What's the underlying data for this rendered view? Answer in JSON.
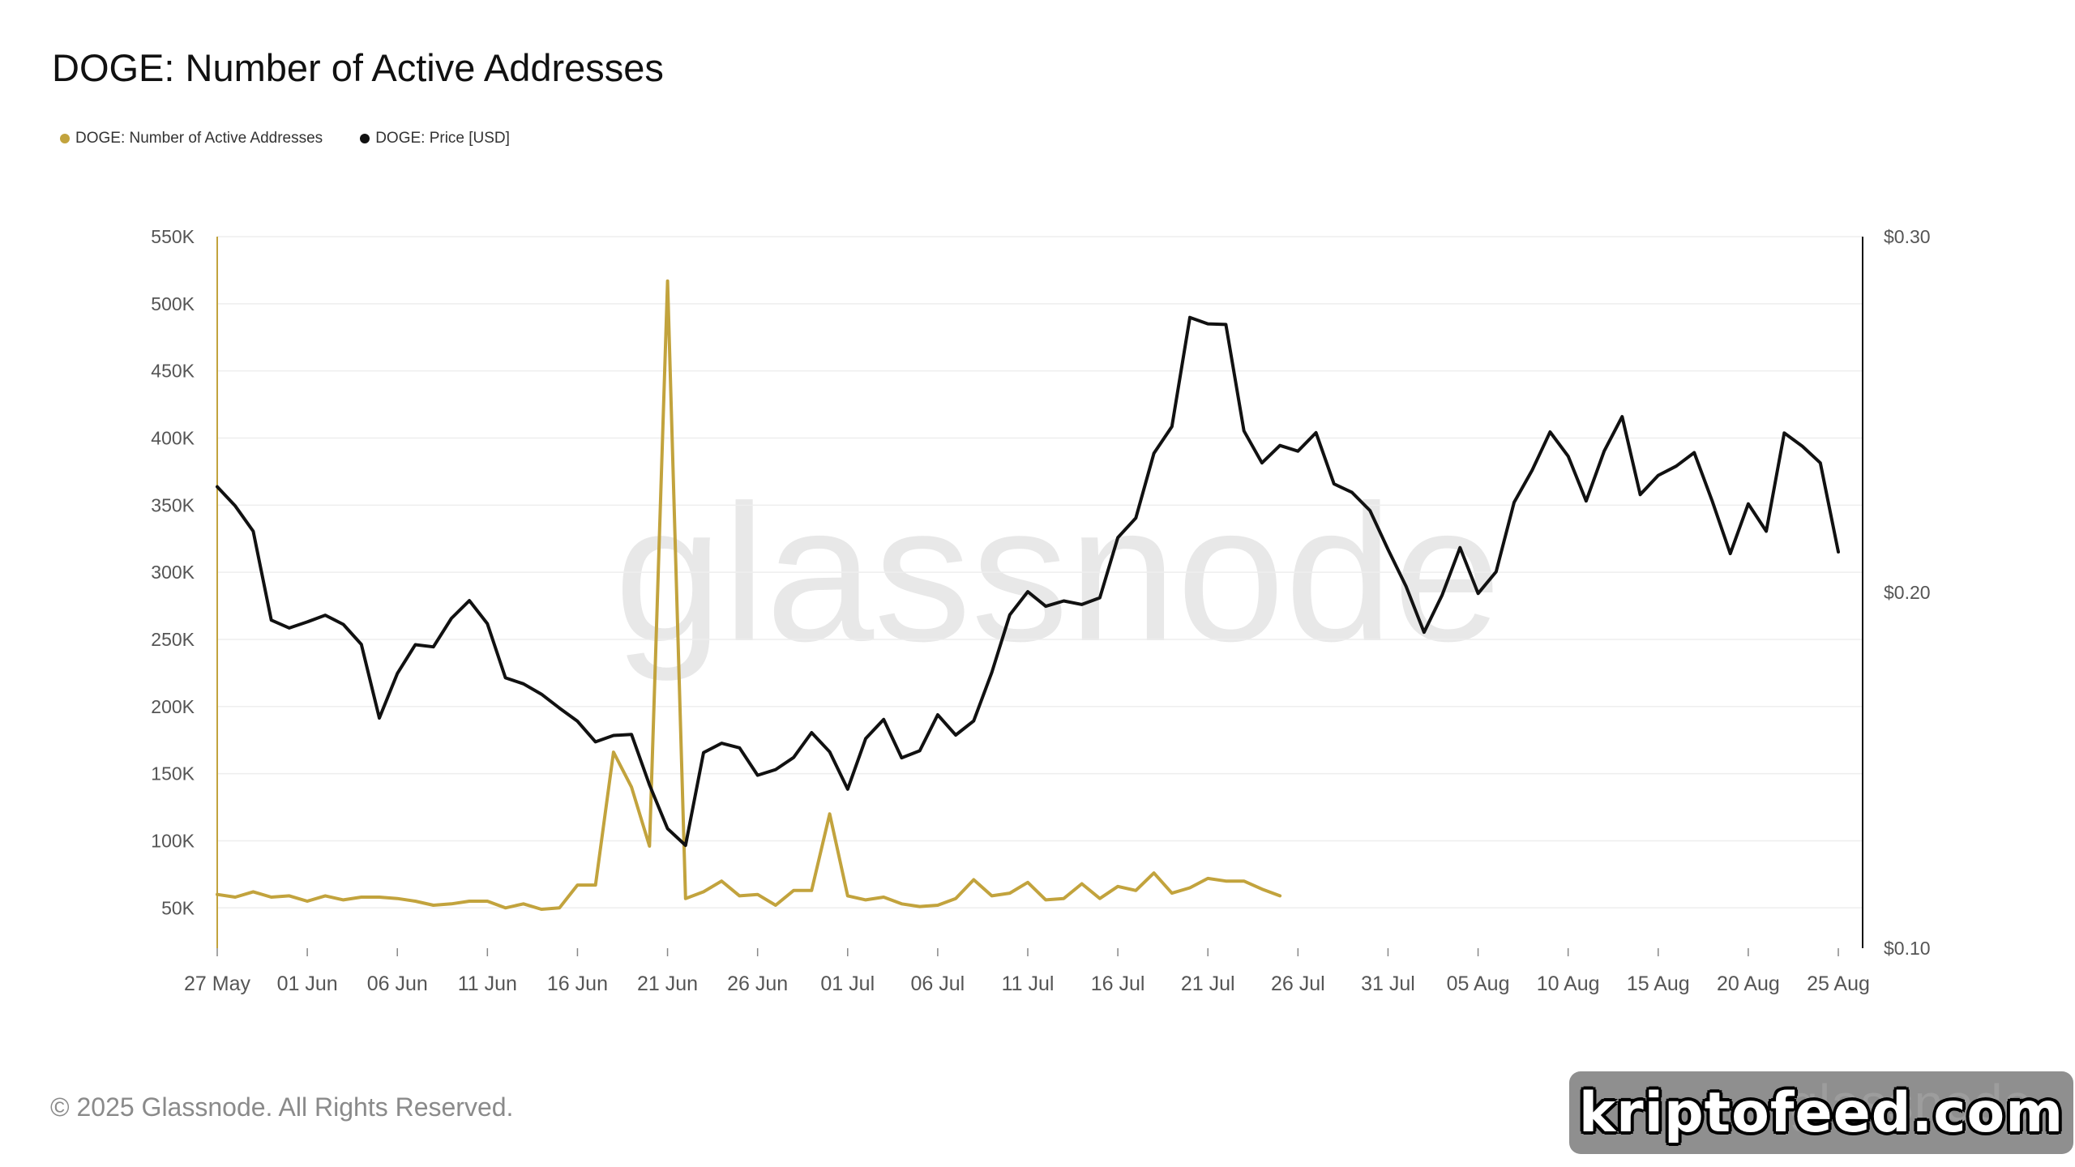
{
  "chart_data": {
    "type": "line",
    "title": "DOGE: Number of Active Addresses",
    "x_labels": [
      "27 May",
      "01 Jun",
      "06 Jun",
      "11 Jun",
      "16 Jun",
      "21 Jun",
      "26 Jun",
      "01 Jul",
      "06 Jul",
      "11 Jul",
      "16 Jul",
      "21 Jul",
      "26 Jul",
      "31 Jul",
      "05 Aug",
      "10 Aug",
      "15 Aug",
      "20 Aug",
      "25 Aug"
    ],
    "x_range": [
      "2025-05-27",
      "2025-08-25"
    ],
    "y_left": {
      "ticks": [
        "550K",
        "500K",
        "450K",
        "400K",
        "350K",
        "300K",
        "250K",
        "200K",
        "150K",
        "100K",
        "50K"
      ],
      "range": [
        20000,
        550000
      ]
    },
    "y_right": {
      "ticks": [
        "$0.30",
        "$0.20",
        "$0.10"
      ],
      "range": [
        0.1,
        0.3
      ]
    },
    "grid": true,
    "legend_position": "top-left",
    "series": [
      {
        "name": "DOGE: Number of Active Addresses",
        "axis": "left",
        "color": "#c2a33d",
        "start_date": "2025-05-27",
        "values": [
          60000,
          58000,
          62000,
          58000,
          59000,
          55000,
          59000,
          56000,
          58000,
          58000,
          57000,
          55000,
          52000,
          53000,
          55000,
          55000,
          50000,
          53000,
          49000,
          50000,
          67000,
          67000,
          166000,
          140000,
          96000,
          517000,
          57000,
          62000,
          70000,
          59000,
          60000,
          52000,
          63000,
          63000,
          120000,
          59000,
          56000,
          58000,
          53000,
          51000,
          52000,
          57000,
          71000,
          59000,
          61000,
          69000,
          56000,
          57000,
          68000,
          57000,
          66000,
          63000,
          76000,
          61000,
          65000,
          72000,
          70000,
          70000,
          64000,
          59000
        ]
      },
      {
        "name": "DOGE: Price [USD]",
        "axis": "right",
        "color": "#111111",
        "start_date": "2025-05-27",
        "values": [
          0.2297,
          0.2243,
          0.2172,
          0.1922,
          0.19,
          0.1917,
          0.1936,
          0.191,
          0.1854,
          0.1647,
          0.1772,
          0.1853,
          0.1847,
          0.1927,
          0.1977,
          0.1912,
          0.176,
          0.1743,
          0.1714,
          0.1675,
          0.1638,
          0.158,
          0.1598,
          0.1601,
          0.1459,
          0.1336,
          0.1289,
          0.155,
          0.1576,
          0.1563,
          0.1486,
          0.1502,
          0.1536,
          0.1606,
          0.1552,
          0.1447,
          0.1589,
          0.1643,
          0.1535,
          0.1555,
          0.1656,
          0.1599,
          0.1639,
          0.1775,
          0.1937,
          0.2002,
          0.1961,
          0.1976,
          0.1966,
          0.1985,
          0.2154,
          0.2209,
          0.2391,
          0.2466,
          0.2773,
          0.2755,
          0.2753,
          0.2454,
          0.2364,
          0.2413,
          0.2397,
          0.2449,
          0.2305,
          0.2281,
          0.223,
          0.2121,
          0.2017,
          0.1888,
          0.1992,
          0.2126,
          0.1997,
          0.2058,
          0.2253,
          0.2343,
          0.2451,
          0.2383,
          0.2257,
          0.2397,
          0.2494,
          0.2275,
          0.2329,
          0.2355,
          0.2393,
          0.2257,
          0.2109,
          0.2249,
          0.2172,
          0.2448,
          0.2411,
          0.2364,
          0.2114
        ]
      }
    ]
  },
  "legend": [
    {
      "label": "DOGE: Number of Active Addresses",
      "color": "#c2a33d"
    },
    {
      "label": "DOGE: Price [USD]",
      "color": "#111111"
    }
  ],
  "watermark_center": "glassnode",
  "footer": "© 2025 Glassnode. All Rights Reserved.",
  "overlay_badge": {
    "text": "kriptofeed.com",
    "ghost_text": "glassnode"
  }
}
